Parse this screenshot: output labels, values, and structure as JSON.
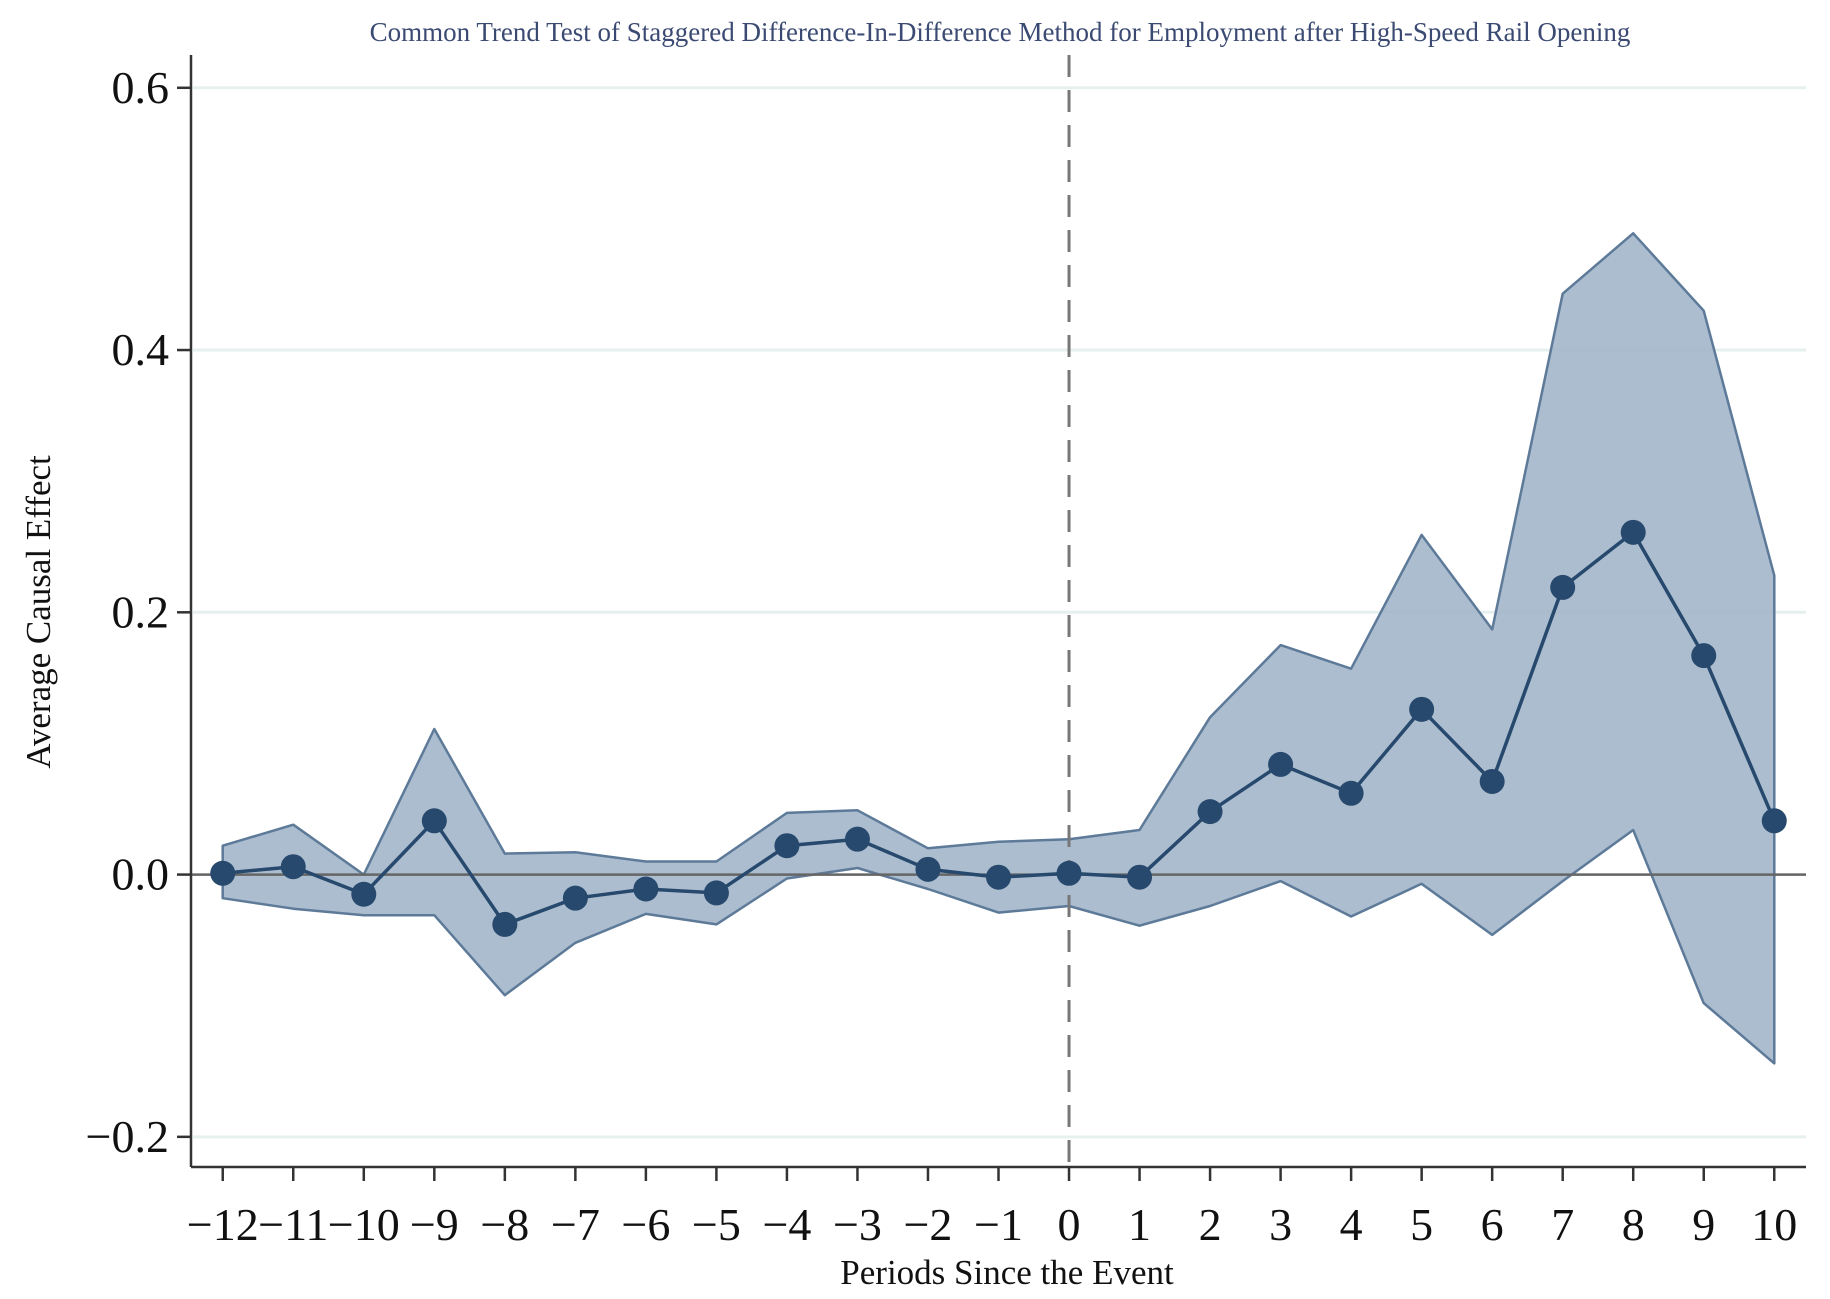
{
  "colors": {
    "title": "#3a4a72",
    "band_fill": "#9db1c7",
    "band_stroke": "#5d7a99",
    "line": "#27496d",
    "marker": "#27496d",
    "grid": "#e6f0ef",
    "axis": "#333333",
    "zero_line": "#666666",
    "event_line": "#777777"
  },
  "chart_data": {
    "type": "line",
    "title": "Common Trend Test of Staggered Difference-In-Difference Method for Employment after High-Speed Rail Opening",
    "xlabel": "Periods Since the Event",
    "ylabel": "Average Causal Effect",
    "x": [
      -12,
      -11,
      -10,
      -9,
      -8,
      -7,
      -6,
      -5,
      -4,
      -3,
      -2,
      -1,
      0,
      1,
      2,
      3,
      4,
      5,
      6,
      7,
      8,
      9,
      10
    ],
    "x_tick_labels": [
      "−12",
      "−11",
      "−10",
      "−9",
      "−8",
      "−7",
      "−6",
      "−5",
      "−4",
      "−3",
      "−2",
      "−1",
      "0",
      "1",
      "2",
      "3",
      "4",
      "5",
      "6",
      "7",
      "8",
      "9",
      "10"
    ],
    "y_ticks": [
      -0.2,
      0.0,
      0.2,
      0.4,
      0.6
    ],
    "y_tick_labels": [
      "−0.2",
      "0.0",
      "0.2",
      "0.4",
      "0.6"
    ],
    "xlim": [
      -12.45,
      10.45
    ],
    "ylim": [
      -0.223,
      0.625
    ],
    "grid": true,
    "event_line_x": 0,
    "series": [
      {
        "name": "Average Causal Effect",
        "values": [
          0.001,
          0.006,
          -0.015,
          0.041,
          -0.038,
          -0.018,
          -0.011,
          -0.014,
          0.022,
          0.027,
          0.004,
          -0.002,
          0.001,
          -0.002,
          0.048,
          0.084,
          0.062,
          0.126,
          0.071,
          0.219,
          0.261,
          0.167,
          0.041
        ]
      }
    ],
    "confidence_band": {
      "upper": [
        0.022,
        0.038,
        0.0,
        0.111,
        0.016,
        0.017,
        0.01,
        0.01,
        0.047,
        0.049,
        0.02,
        0.025,
        0.027,
        0.034,
        0.12,
        0.175,
        0.157,
        0.259,
        0.187,
        0.443,
        0.489,
        0.43,
        0.228
      ],
      "lower": [
        -0.018,
        -0.026,
        -0.031,
        -0.031,
        -0.092,
        -0.052,
        -0.03,
        -0.038,
        -0.003,
        0.005,
        -0.011,
        -0.029,
        -0.024,
        -0.039,
        -0.024,
        -0.005,
        -0.032,
        -0.007,
        -0.046,
        -0.005,
        0.034,
        -0.098,
        -0.144
      ]
    }
  }
}
